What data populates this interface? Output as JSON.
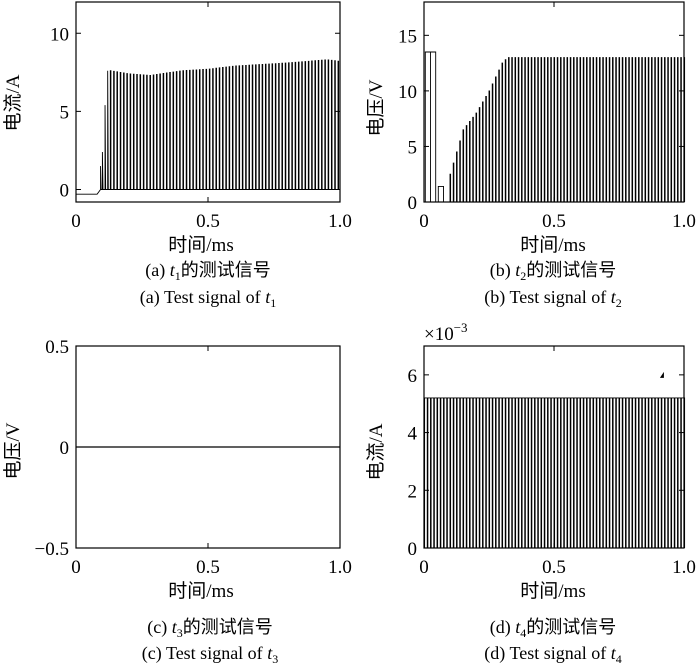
{
  "chart_data": [
    {
      "type": "line",
      "panel": "a",
      "xlabel": "时间/ms",
      "ylabel": "电流/A",
      "xlim": [
        0,
        1.0
      ],
      "ylim": [
        -0.8,
        12
      ],
      "xticks": [
        "0",
        "0.5",
        "1.0"
      ],
      "yticks": [
        "0",
        "5",
        "10"
      ],
      "caption_cn_prefix": "(a) ",
      "caption_cn_var": "t",
      "caption_cn_sub": "1",
      "caption_cn_rest": "的测试信号",
      "caption_en_prefix": "(a) Test signal of ",
      "caption_en_var": "t",
      "caption_en_sub": "1",
      "series": [
        {
          "baseline": -0.3,
          "rise_x": [
            0.08,
            0.093,
            0.1,
            0.11,
            0.12
          ],
          "rise_y": [
            0.0,
            1.5,
            2.4,
            5.4,
            7.6
          ],
          "pulse_start": 0.13,
          "pulse_step": 0.0125,
          "pulse_end": 1.0,
          "peaks_x": [
            0.13,
            0.2,
            0.28,
            0.4,
            0.5,
            0.6,
            0.7,
            0.8,
            0.95,
            1.0
          ],
          "peaks_y": [
            7.6,
            7.4,
            7.3,
            7.6,
            7.7,
            7.9,
            8.0,
            8.1,
            8.3,
            8.2
          ]
        }
      ]
    },
    {
      "type": "line",
      "panel": "b",
      "xlabel": "时间/ms",
      "ylabel": "电压/V",
      "xlim": [
        0,
        1.0
      ],
      "ylim": [
        0,
        18
      ],
      "xticks": [
        "0",
        "0.5",
        "1.0"
      ],
      "yticks": [
        "0",
        "5",
        "10",
        "15"
      ],
      "caption_cn_prefix": "(b) ",
      "caption_cn_var": "t",
      "caption_cn_sub": "2",
      "caption_cn_rest": "的测试信号",
      "caption_en_prefix": "(b) Test signal of ",
      "caption_en_var": "t",
      "caption_en_sub": "2",
      "series": [
        {
          "initial_pulses": [
            {
              "x0": 0.005,
              "x1": 0.045,
              "y": 13.5
            },
            {
              "x0": 0.055,
              "x1": 0.075,
              "y": 1.4
            }
          ],
          "pulse_start": 0.1,
          "pulse_step": 0.0125,
          "pulse_end": 1.0,
          "ramp_x": [
            0.1,
            0.15,
            0.2,
            0.25,
            0.3,
            0.32,
            1.0
          ],
          "ramp_y": [
            2.5,
            6.5,
            8.0,
            10.0,
            12.5,
            13.0,
            13.0
          ]
        }
      ]
    },
    {
      "type": "line",
      "panel": "c",
      "xlabel": "时间/ms",
      "ylabel": "电压/V",
      "xlim": [
        0,
        1.0
      ],
      "ylim": [
        -0.5,
        0.5
      ],
      "xticks": [
        "0",
        "0.5",
        "1.0"
      ],
      "yticks": [
        "0.5",
        "0",
        "−0.5"
      ],
      "caption_cn_prefix": "(c) ",
      "caption_cn_var": "t",
      "caption_cn_sub": "3",
      "caption_cn_rest": "的测试信号",
      "caption_en_prefix": "(c) Test signal of ",
      "caption_en_var": "t",
      "caption_en_sub": "3",
      "series": [
        {
          "x": [
            0,
            1.0
          ],
          "y": [
            0,
            0
          ]
        }
      ]
    },
    {
      "type": "line",
      "panel": "d",
      "xlabel": "时间/ms",
      "ylabel": "电流/A",
      "xlim": [
        0,
        1.0
      ],
      "ylim": [
        0,
        0.007
      ],
      "xticks": [
        "0",
        "0.5",
        "1.0"
      ],
      "yticks": [
        "0",
        "2",
        "4",
        "6"
      ],
      "scale_base": "×10",
      "scale_exp": "−3",
      "caption_cn_prefix": "(d) ",
      "caption_cn_var": "t",
      "caption_cn_sub": "4",
      "caption_cn_rest": "的测试信号",
      "caption_en_prefix": "(d) Test signal of ",
      "caption_en_var": "t",
      "caption_en_sub": "4",
      "series": [
        {
          "pulse_start": 0.0,
          "pulse_step": 0.0125,
          "pulse_end": 1.0,
          "level": 0.0052,
          "spike_x": 0.915,
          "spike_y": 0.006
        }
      ]
    }
  ]
}
